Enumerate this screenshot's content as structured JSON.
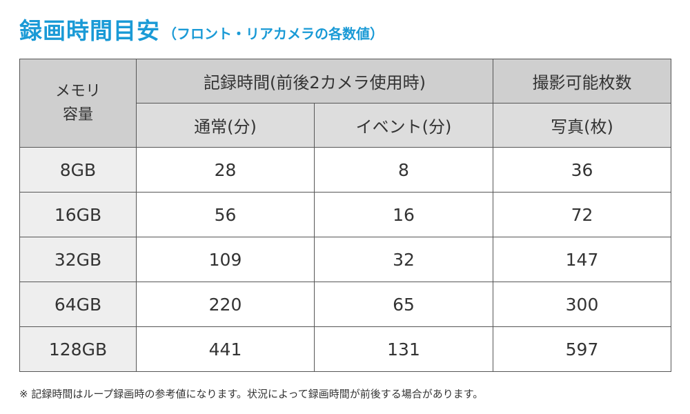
{
  "title": {
    "main": "録画時間目安",
    "sub": "（フロント・リアカメラの各数値）"
  },
  "table": {
    "header": {
      "capacity": "メモリ\n容量",
      "recording_group": "記録時間(前後2カメラ使用時)",
      "photo_group": "撮影可能枚数",
      "normal": "通常(分)",
      "event": "イベント(分)",
      "photo": "写真(枚)"
    },
    "rows": [
      {
        "capacity": "8GB",
        "normal": "28",
        "event": "8",
        "photo": "36"
      },
      {
        "capacity": "16GB",
        "normal": "56",
        "event": "16",
        "photo": "72"
      },
      {
        "capacity": "32GB",
        "normal": "109",
        "event": "32",
        "photo": "147"
      },
      {
        "capacity": "64GB",
        "normal": "220",
        "event": "65",
        "photo": "300"
      },
      {
        "capacity": "128GB",
        "normal": "441",
        "event": "131",
        "photo": "597"
      }
    ]
  },
  "footnote": "※ 記録時間はループ録画時の参考値になります。状況によって録画時間が前後する場合があります。"
}
